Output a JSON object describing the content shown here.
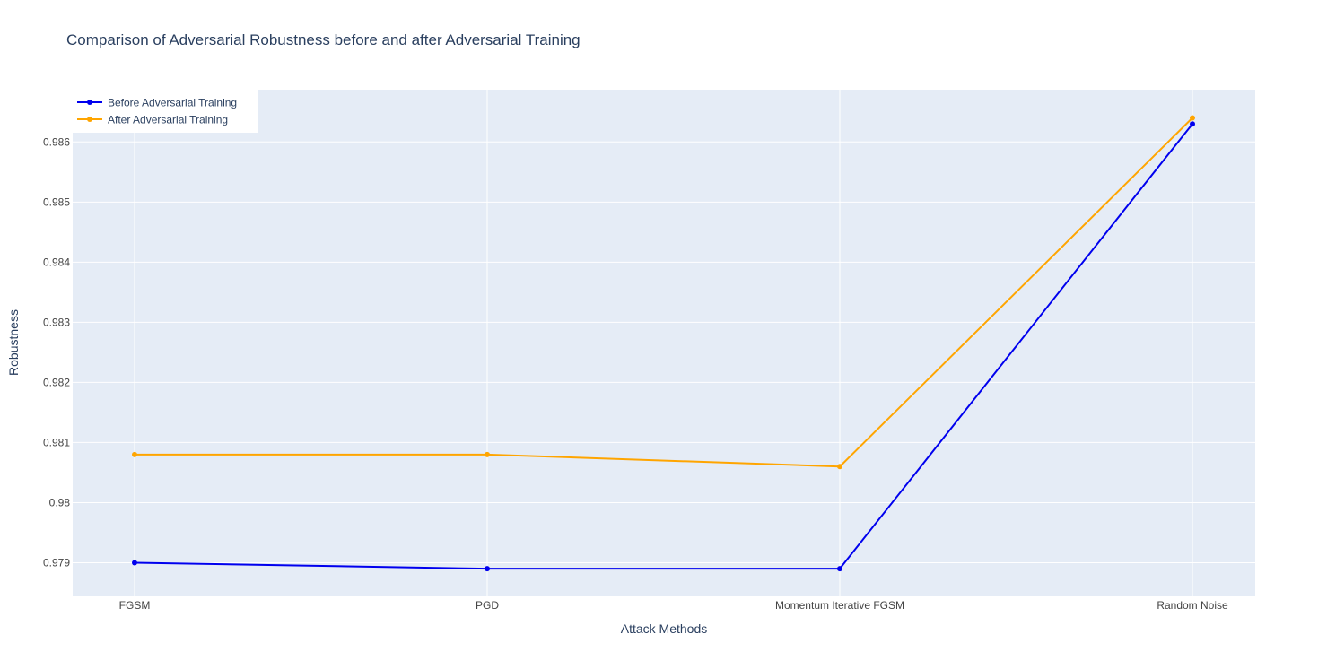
{
  "chart_data": {
    "type": "line",
    "title": "Comparison of Adversarial Robustness before and after Adversarial Training",
    "xlabel": "Attack Methods",
    "ylabel": "Robustness",
    "categories": [
      "FGSM",
      "PGD",
      "Momentum Iterative FGSM",
      "Random Noise"
    ],
    "ylim": [
      0.97844,
      0.98687
    ],
    "yticks": [
      0.979,
      0.98,
      0.981,
      0.982,
      0.983,
      0.984,
      0.985,
      0.986
    ],
    "ytick_labels": [
      "0.979",
      "0.98",
      "0.981",
      "0.982",
      "0.983",
      "0.984",
      "0.985",
      "0.986"
    ],
    "grid": true,
    "legend_position": "top-left",
    "series": [
      {
        "name": "Before Adversarial Training",
        "color": "#0000ee",
        "values": [
          0.979,
          0.9789,
          0.9789,
          0.9863
        ]
      },
      {
        "name": "After Adversarial Training",
        "color": "#ffa500",
        "values": [
          0.9808,
          0.9808,
          0.9806,
          0.9864
        ]
      }
    ]
  }
}
